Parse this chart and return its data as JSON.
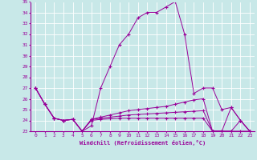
{
  "xlabel": "Windchill (Refroidissement éolien,°C)",
  "xlim": [
    -0.5,
    23.5
  ],
  "ylim": [
    23,
    35
  ],
  "yticks": [
    23,
    24,
    25,
    26,
    27,
    28,
    29,
    30,
    31,
    32,
    33,
    34,
    35
  ],
  "xticks": [
    0,
    1,
    2,
    3,
    4,
    5,
    6,
    7,
    8,
    9,
    10,
    11,
    12,
    13,
    14,
    15,
    16,
    17,
    18,
    19,
    20,
    21,
    22,
    23
  ],
  "background_color": "#c8e8e8",
  "grid_color": "#ffffff",
  "line_color": "#990099",
  "series": [
    [
      27.0,
      25.5,
      24.2,
      24.0,
      24.1,
      23.0,
      23.5,
      27.0,
      29.0,
      31.0,
      32.0,
      33.5,
      34.0,
      34.0,
      34.5,
      35.0,
      32.0,
      26.5,
      27.0,
      27.0,
      25.0,
      25.2,
      24.0,
      23.0
    ],
    [
      27.0,
      25.5,
      24.2,
      24.0,
      24.1,
      23.0,
      24.1,
      24.2,
      24.3,
      24.4,
      24.5,
      24.55,
      24.6,
      24.65,
      24.7,
      24.75,
      24.8,
      24.85,
      24.9,
      23.0,
      23.0,
      23.0,
      23.0,
      23.0
    ],
    [
      27.0,
      25.5,
      24.2,
      24.0,
      24.1,
      23.0,
      24.0,
      24.1,
      24.15,
      24.2,
      24.2,
      24.2,
      24.2,
      24.2,
      24.2,
      24.2,
      24.2,
      24.2,
      24.2,
      23.0,
      23.0,
      23.0,
      24.0,
      23.0
    ],
    [
      27.0,
      25.5,
      24.2,
      24.0,
      24.1,
      23.0,
      24.1,
      24.3,
      24.5,
      24.7,
      24.9,
      25.0,
      25.1,
      25.2,
      25.3,
      25.5,
      25.7,
      25.9,
      26.0,
      23.0,
      23.0,
      25.2,
      24.0,
      23.0
    ]
  ]
}
